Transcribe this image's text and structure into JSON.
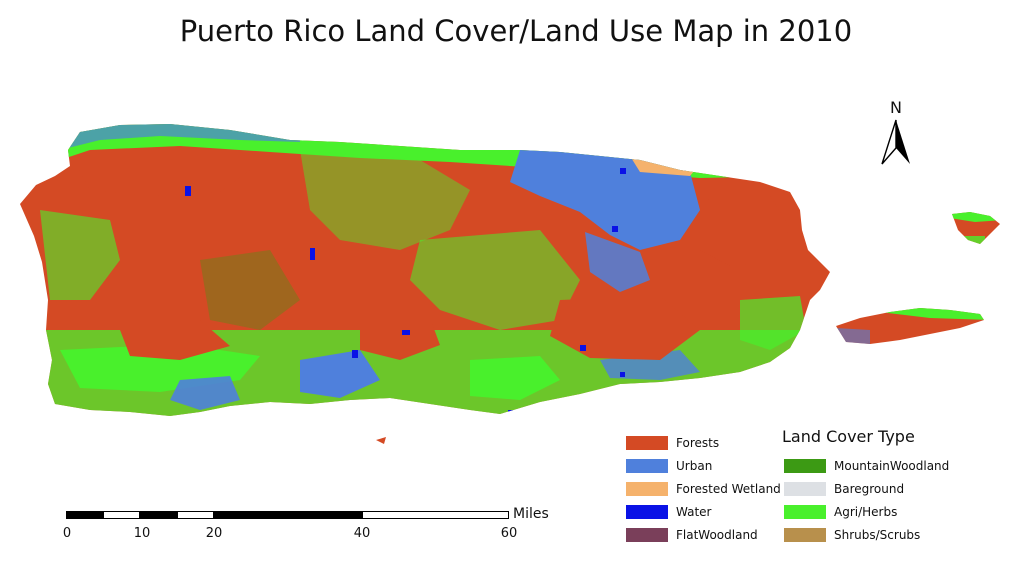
{
  "title": "Puerto Rico Land Cover/Land Use Map in 2010",
  "north_arrow": {
    "label": "N"
  },
  "legend": {
    "title": "Land Cover Type",
    "items": [
      {
        "label": "Forests",
        "color": "#d44a24"
      },
      {
        "label": "Urban",
        "color": "#4f80dc"
      },
      {
        "label": "Forested Wetland",
        "color": "#f5b26c"
      },
      {
        "label": "Water",
        "color": "#0a12e6"
      },
      {
        "label": "FlatWoodland",
        "color": "#7a3f5a"
      },
      {
        "label": "MountainWoodland",
        "color": "#3c9a14"
      },
      {
        "label": "Bareground",
        "color": "#dde0e4"
      },
      {
        "label": "Agri/Herbs",
        "color": "#49f02c"
      },
      {
        "label": "Shrubs/Scrubs",
        "color": "#b8904c"
      }
    ]
  },
  "scale_bar": {
    "unit": "Miles",
    "ticks": [
      "0",
      "10",
      "20",
      "40",
      "60"
    ]
  }
}
